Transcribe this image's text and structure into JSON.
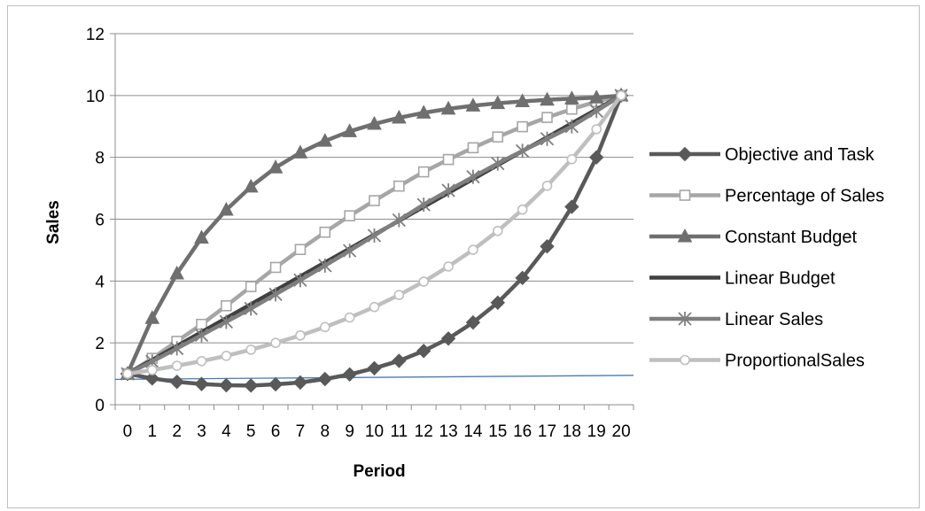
{
  "chart_data": {
    "type": "line",
    "xlabel": "Period",
    "ylabel": "Sales",
    "ylim": [
      0,
      12
    ],
    "yticks": [
      0,
      2,
      4,
      6,
      8,
      10,
      12
    ],
    "x": [
      "0",
      "1",
      "2",
      "3",
      "4",
      "5",
      "6",
      "7",
      "8",
      "9",
      "10",
      "11",
      "12",
      "13",
      "14",
      "15",
      "16",
      "17",
      "18",
      "19",
      "20"
    ],
    "grid": "horizontal",
    "legend_position": "right",
    "series": [
      {
        "name": "Objective and Task",
        "color": "#595959",
        "marker": "diamond",
        "values": [
          1.0,
          0.85,
          0.74,
          0.67,
          0.63,
          0.62,
          0.66,
          0.72,
          0.83,
          0.98,
          1.18,
          1.42,
          1.74,
          2.14,
          2.66,
          3.3,
          4.1,
          5.12,
          6.4,
          8.0,
          10.0
        ]
      },
      {
        "name": "Percentage of Sales",
        "color": "#a6a6a6",
        "marker": "square",
        "values": [
          1.0,
          1.5,
          2.05,
          2.6,
          3.2,
          3.82,
          4.44,
          5.02,
          5.58,
          6.11,
          6.6,
          7.07,
          7.53,
          7.93,
          8.31,
          8.66,
          8.99,
          9.29,
          9.56,
          9.8,
          10.0
        ]
      },
      {
        "name": "Constant Budget",
        "color": "#6f6f6f",
        "marker": "triangle",
        "values": [
          1.0,
          2.8,
          4.24,
          5.4,
          6.3,
          7.05,
          7.67,
          8.15,
          8.53,
          8.84,
          9.08,
          9.28,
          9.44,
          9.57,
          9.67,
          9.75,
          9.81,
          9.86,
          9.9,
          9.93,
          10.0
        ]
      },
      {
        "name": "Linear Budget",
        "color": "#404040",
        "marker": "none",
        "values": [
          1.0,
          1.45,
          1.9,
          2.35,
          2.8,
          3.25,
          3.7,
          4.15,
          4.6,
          5.05,
          5.5,
          5.95,
          6.4,
          6.85,
          7.3,
          7.75,
          8.2,
          8.65,
          9.1,
          9.55,
          10.0
        ]
      },
      {
        "name": "Linear Sales",
        "color": "#7f7f7f",
        "marker": "asterisk",
        "values": [
          1.0,
          1.4,
          1.82,
          2.25,
          2.68,
          3.11,
          3.57,
          4.03,
          4.5,
          4.98,
          5.47,
          5.97,
          6.47,
          6.93,
          7.37,
          7.8,
          8.21,
          8.6,
          9.0,
          9.5,
          10.0
        ]
      },
      {
        "name": "ProportionalSales",
        "color": "#bfbfbf",
        "marker": "circle",
        "values": [
          1.0,
          1.12,
          1.26,
          1.41,
          1.58,
          1.78,
          2.0,
          2.24,
          2.51,
          2.82,
          3.16,
          3.55,
          3.98,
          4.47,
          5.01,
          5.62,
          6.31,
          7.08,
          7.94,
          8.91,
          10.0
        ]
      }
    ],
    "trendline": {
      "color": "#4a7ab5",
      "from": [
        -0.5,
        0.82
      ],
      "to": [
        20.5,
        0.95
      ]
    }
  }
}
